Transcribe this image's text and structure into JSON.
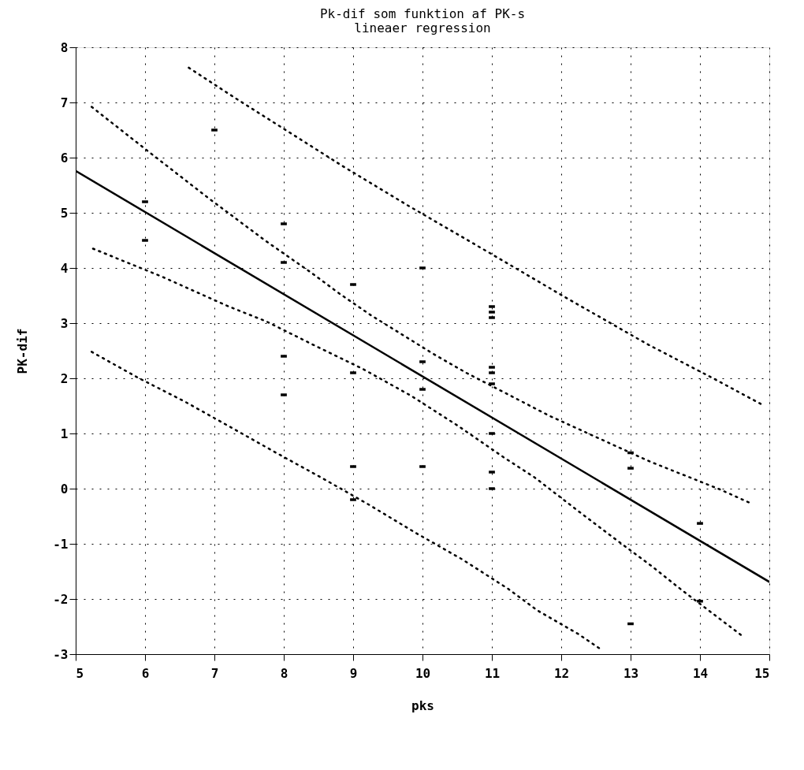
{
  "chart_data": {
    "type": "scatter",
    "title": "Pk-dif som funktion af PK-s",
    "subtitle": "lineaer regression",
    "xlabel": "pks",
    "ylabel": "PK-dif",
    "xlim": [
      5,
      15
    ],
    "ylim": [
      -3,
      8
    ],
    "xticks": [
      5,
      6,
      7,
      8,
      9,
      10,
      11,
      12,
      13,
      14,
      15
    ],
    "yticks": [
      -3,
      -2,
      -1,
      0,
      1,
      2,
      3,
      4,
      5,
      6,
      7,
      8
    ],
    "grid": true,
    "series": [
      {
        "type": "scatter",
        "color": "#000000",
        "x": [
          6,
          6,
          7,
          8,
          8,
          8,
          8,
          9,
          9,
          9,
          9,
          10,
          10,
          10,
          10,
          11,
          11,
          11,
          11,
          11,
          11,
          11,
          11,
          11,
          13,
          13,
          13,
          14,
          14
        ],
        "values": [
          5.2,
          4.5,
          6.5,
          4.8,
          4.1,
          2.4,
          1.7,
          3.7,
          2.1,
          0.4,
          -0.2,
          4.0,
          2.3,
          1.8,
          0.4,
          3.3,
          3.2,
          3.1,
          2.2,
          2.1,
          1.9,
          1.0,
          0.3,
          0.0,
          0.65,
          0.37,
          -2.45,
          -0.63,
          -2.04
        ]
      },
      {
        "type": "line",
        "color": "#000000",
        "line_style": "solid",
        "x": [
          5,
          15
        ],
        "values": [
          5.76,
          -1.69
        ]
      },
      {
        "type": "line",
        "color": "#000000",
        "line_style": "dotted",
        "x": [
          6.63,
          7.3,
          8.87,
          9.78,
          10.93,
          12.07,
          13.24,
          14.19,
          14.9
        ],
        "values": [
          7.63,
          7.08,
          5.83,
          5.14,
          4.3,
          3.46,
          2.62,
          2.0,
          1.52
        ]
      },
      {
        "type": "line",
        "color": "#000000",
        "line_style": "dotted",
        "x": [
          5.23,
          6.06,
          6.9,
          7.74,
          8.39,
          8.82,
          9.26,
          9.71,
          10.16,
          10.63,
          11.83,
          12.79,
          13.28,
          13.78,
          14.28,
          14.76
        ],
        "values": [
          6.92,
          6.1,
          5.28,
          4.49,
          3.92,
          3.52,
          3.14,
          2.79,
          2.44,
          2.1,
          1.32,
          0.77,
          0.49,
          0.24,
          -0.01,
          -0.28
        ]
      },
      {
        "type": "line",
        "color": "#000000",
        "line_style": "dotted",
        "x": [
          5.25,
          6.23,
          7.21,
          7.75,
          8.42,
          9.14,
          9.84,
          10.51,
          11.18,
          11.62,
          12.26,
          12.69,
          13.32,
          13.75,
          14.17,
          14.59
        ],
        "values": [
          4.35,
          3.85,
          3.3,
          3.03,
          2.61,
          2.17,
          1.68,
          1.14,
          0.56,
          0.2,
          -0.42,
          -0.83,
          -1.42,
          -1.85,
          -2.25,
          -2.65
        ]
      },
      {
        "type": "line",
        "color": "#000000",
        "line_style": "dotted",
        "x": [
          5.23,
          5.9,
          6.57,
          7.24,
          7.89,
          8.57,
          9.24,
          9.9,
          10.57,
          11.24,
          11.66,
          12.24,
          12.58
        ],
        "values": [
          2.48,
          2.01,
          1.58,
          1.11,
          0.65,
          0.18,
          -0.3,
          -0.8,
          -1.28,
          -1.82,
          -2.21,
          -2.63,
          -2.92
        ]
      }
    ]
  }
}
